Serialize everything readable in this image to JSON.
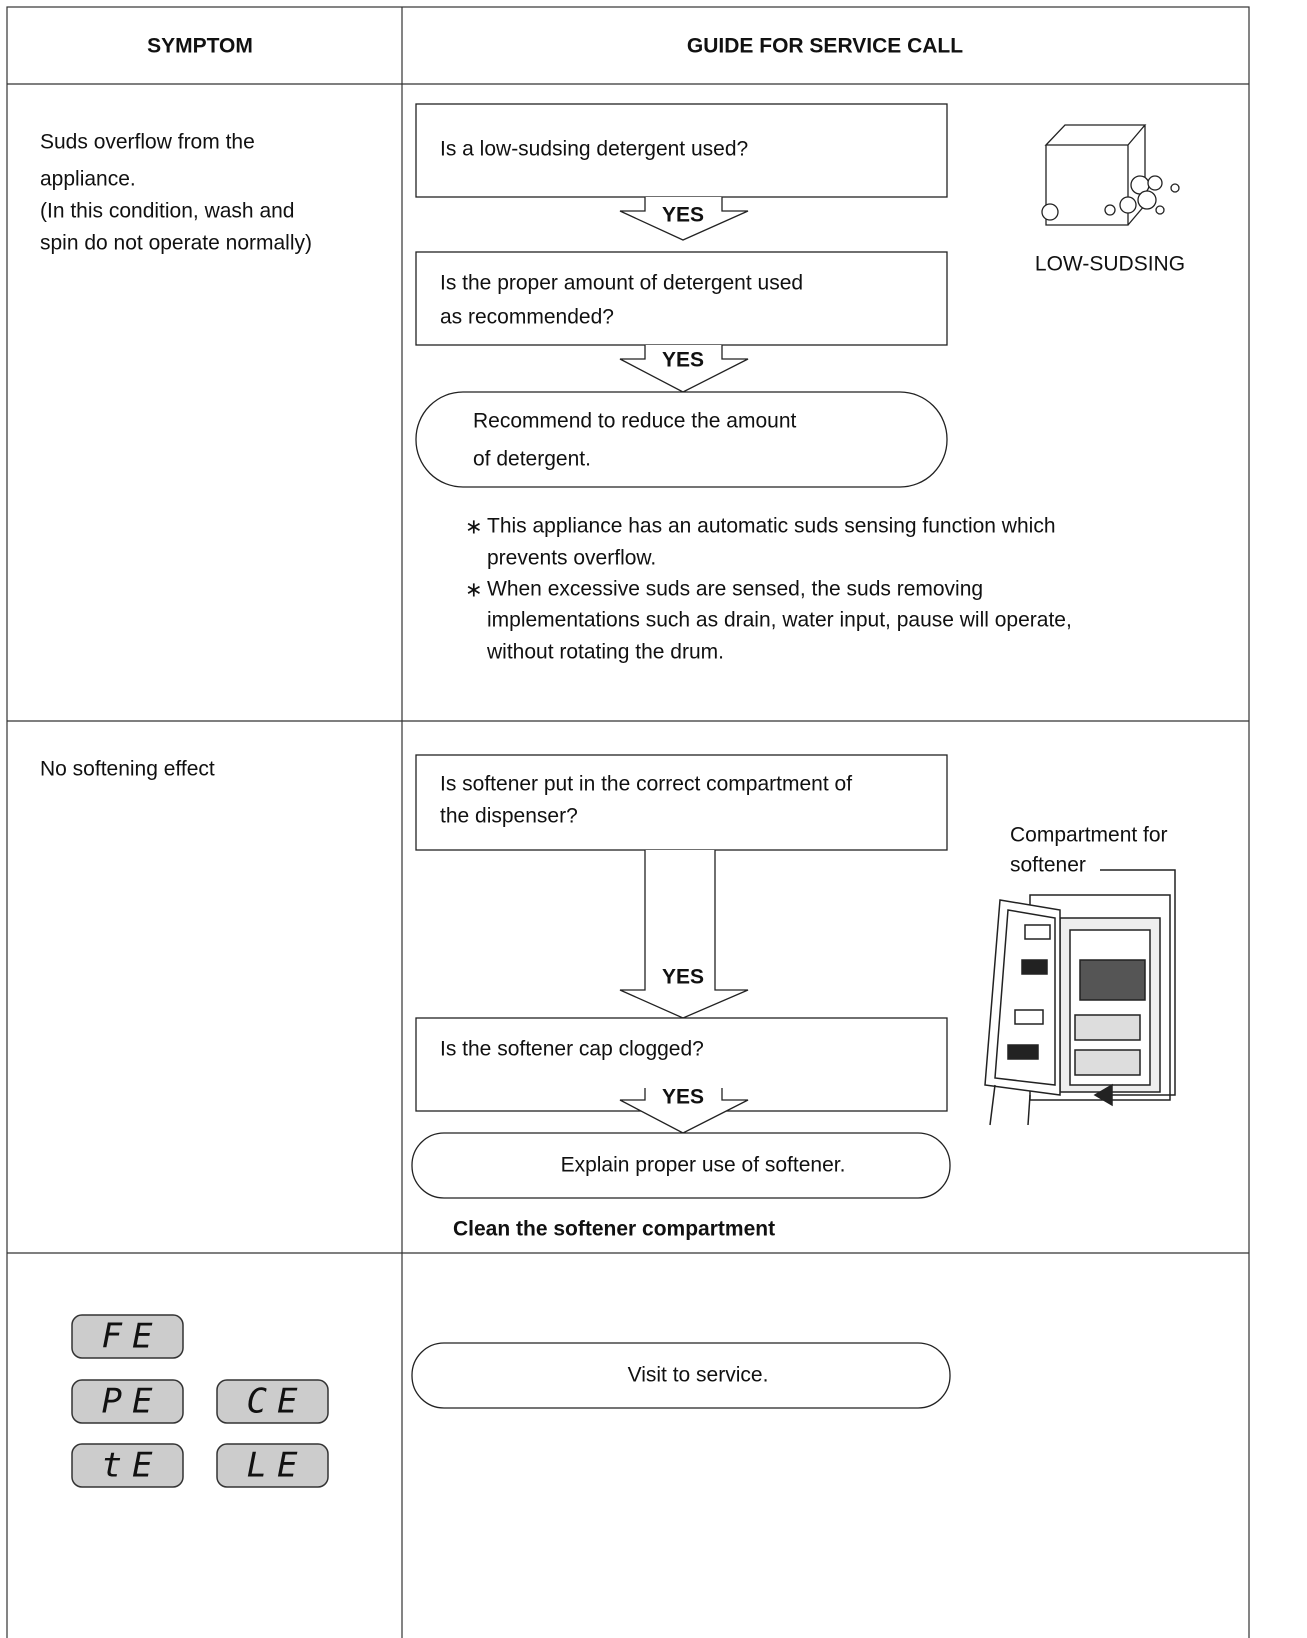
{
  "header": {
    "symptom": "SYMPTOM",
    "guide": "GUIDE FOR SERVICE CALL"
  },
  "rows": [
    {
      "symptom": [
        "Suds overflow from the",
        "appliance.",
        "(In this condition, wash and",
        "spin do not operate normally)"
      ],
      "steps": [
        {
          "lines": [
            "Is a low-sudsing detergent used?"
          ],
          "answer": "YES"
        },
        {
          "lines": [
            "Is the proper amount of detergent used",
            "as recommended?"
          ],
          "answer": "YES"
        }
      ],
      "result": [
        "Recommend to reduce the amount",
        "of detergent."
      ],
      "image_label": [
        "LOW-SUDSING"
      ],
      "notes": [
        {
          "marker": "∗",
          "lines": [
            "This appliance has an automatic suds sensing function which",
            "prevents overflow."
          ]
        },
        {
          "marker": "∗",
          "lines": [
            "When excessive suds are sensed, the suds removing",
            "implementations such as drain, water input, pause will operate,",
            "without rotating the drum."
          ]
        }
      ]
    },
    {
      "symptom": [
        "No softening effect"
      ],
      "steps": [
        {
          "lines": [
            "Is softener put in the correct compartment of",
            "the  dispenser?"
          ],
          "answer": "YES"
        },
        {
          "lines": [
            "Is the softener cap clogged?"
          ],
          "answer": "YES"
        }
      ],
      "result": [
        "Explain proper use of softener."
      ],
      "action": "Clean the softener compartment",
      "image_label": [
        "Compartment for",
        "softener"
      ]
    },
    {
      "codes": [
        "FE",
        "PE",
        "CE",
        "tE",
        "LE"
      ],
      "result": [
        "Visit to service."
      ]
    }
  ]
}
